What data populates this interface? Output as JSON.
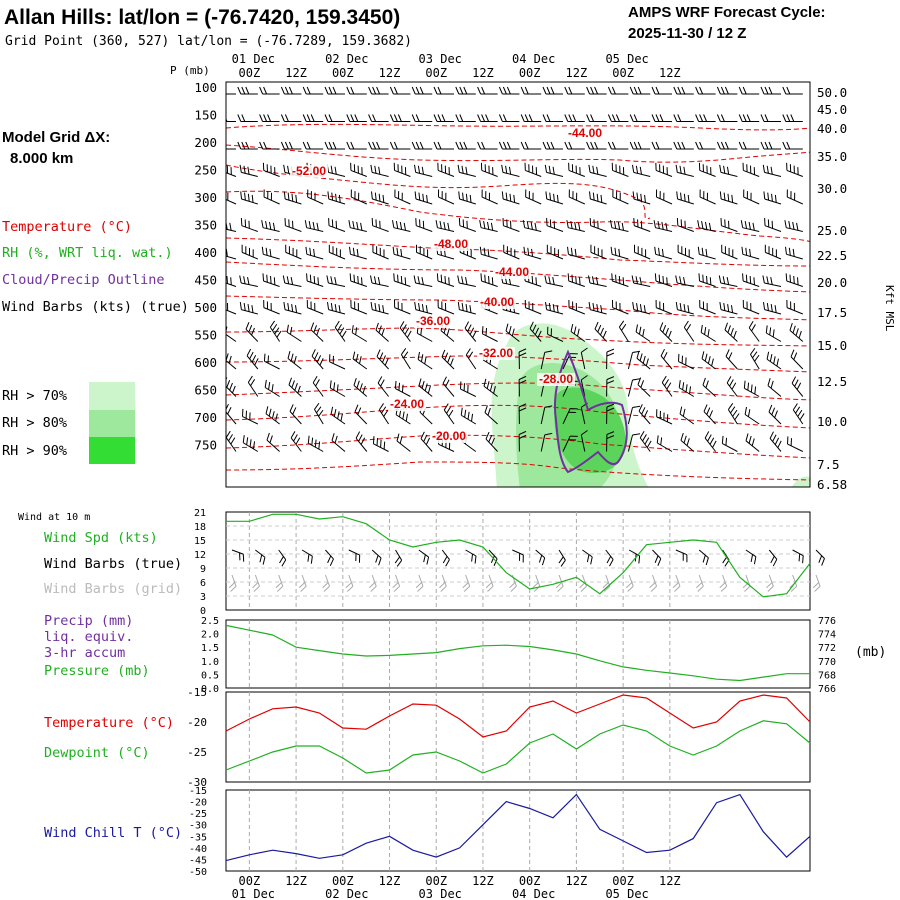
{
  "header": {
    "title": "Allan Hills:  lat/lon = (-76.7420, 159.3450)",
    "subtitle": "Grid Point (360, 527) lat/lon = (-76.7289, 159.3682)",
    "cycle_line1": "AMPS WRF Forecast Cycle:",
    "cycle_line2": "2025-11-30 / 12  Z"
  },
  "left_panel": {
    "grid_label": "Model Grid ΔX:",
    "grid_value": "8.000 km",
    "legend_temperature": "Temperature (°C)",
    "legend_rh": "RH (%, WRT liq. wat.)",
    "legend_cloud": "Cloud/Precip Outline",
    "legend_wind": "Wind Barbs (kts) (true)",
    "rh_levels": [
      "RH > 70%",
      "RH > 80%",
      "RH > 90%"
    ],
    "wind10m": "Wind at 10 m",
    "leg_wspd": "Wind Spd (kts)",
    "leg_wbarb_true": "Wind Barbs (true)",
    "leg_wbarb_grid": "Wind Barbs (grid)",
    "leg_precip1": "Precip (mm)",
    "leg_precip2": "liq. equiv.",
    "leg_precip3": "3-hr accum",
    "leg_pressure": "Pressure (mb)",
    "leg_temp": "Temperature (°C)",
    "leg_dew": "Dewpoint (°C)",
    "leg_chill": "Wind Chill T (°C)"
  },
  "colors": {
    "temperature": "#e00000",
    "rh": "#20b020",
    "cloud": "#7030a0",
    "windchill": "#1a1aa0",
    "rh70": "#ccf5cc",
    "rh80": "#9ee89e",
    "rh90": "#33dd33"
  },
  "time_axis": {
    "top_ticks": [
      "00Z",
      "12Z",
      "00Z",
      "12Z",
      "00Z",
      "12Z",
      "00Z",
      "12Z",
      "00Z",
      "12Z"
    ],
    "day_labels": [
      "01 Dec",
      "02 Dec",
      "03 Dec",
      "04 Dec",
      "05 Dec"
    ],
    "bottom_ticks": [
      "00Z",
      "12Z",
      "00Z",
      "12Z",
      "00Z",
      "12Z",
      "00Z",
      "12Z",
      "00Z",
      "12Z"
    ],
    "bottom_days": [
      "01 Dec",
      "02 Dec",
      "03 Dec",
      "04 Dec",
      "05 Dec"
    ]
  },
  "chart_data": [
    {
      "type": "time-height cross section",
      "y_axis_title": "P (mb)",
      "pressure_ticks": [
        "100",
        "150",
        "200",
        "250",
        "300",
        "350",
        "400",
        "450",
        "500",
        "550",
        "600",
        "650",
        "700",
        "750"
      ],
      "right_axis_title": "Kft MSL",
      "kft_ticks": [
        "50.0",
        "45.0",
        "40.0",
        "35.0",
        "30.0",
        "25.0",
        "22.5",
        "20.0",
        "17.5",
        "15.0",
        "12.5",
        "10.0",
        "7.5",
        "6.58"
      ],
      "temperature_labels": [
        "-44.00",
        "-52.00",
        "-48.00",
        "-44.00",
        "-40.00",
        "-36.00",
        "-32.00",
        "-28.00",
        "-24.00",
        "-20.00"
      ],
      "temperature_contours_c": [
        -52,
        -48,
        -44,
        -40,
        -36,
        -32,
        -28,
        -24,
        -20
      ]
    },
    {
      "type": "line",
      "name": "wind speed at 10 m",
      "ylim": [
        0,
        21
      ],
      "yticks": [
        "21",
        "18",
        "15",
        "12",
        "9",
        "6",
        "3",
        "0"
      ],
      "x_hours": [
        0,
        6,
        12,
        18,
        24,
        30,
        36,
        42,
        48,
        54,
        60,
        66,
        72,
        78,
        84,
        90,
        96,
        102,
        108,
        114,
        120,
        126,
        132,
        138,
        144,
        150
      ],
      "wind_speed_kts": [
        19,
        19,
        20.5,
        20.5,
        19.5,
        20,
        18.5,
        15,
        13.5,
        14.5,
        15,
        13.5,
        8,
        4.5,
        5.5,
        7,
        3.5,
        8,
        14,
        14.5,
        15,
        14.5,
        7,
        2.8,
        3.5,
        10
      ]
    },
    {
      "type": "line",
      "name": "sea-level pressure and 3-hr precipitation",
      "precip_ticks": [
        "2.5",
        "2.0",
        "1.5",
        "1.0",
        "0.5",
        "0.0"
      ],
      "pressure_ticks_right": [
        "776",
        "774",
        "772",
        "770",
        "768",
        "766"
      ],
      "right_unit": "(mb)",
      "precip_mm": [
        0,
        0,
        0,
        0,
        0,
        0,
        0,
        0,
        0,
        0,
        0,
        0,
        0,
        0,
        0,
        0,
        0,
        0,
        0,
        0,
        0,
        0,
        0,
        0,
        0,
        0
      ],
      "pressure_mb": [
        775.2,
        774.5,
        773.8,
        772.0,
        771.5,
        771.0,
        770.7,
        770.8,
        771.0,
        771.2,
        771.8,
        772.2,
        772.3,
        772.1,
        771.6,
        771.0,
        770.0,
        769.1,
        768.6,
        768.2,
        767.8,
        767.3,
        767.1,
        767.6,
        768.1,
        768.1
      ]
    },
    {
      "type": "line",
      "name": "temperature and dewpoint",
      "ylim": [
        -30,
        -15
      ],
      "yticks": [
        "-15",
        "-20",
        "-25",
        "-30"
      ],
      "temperature_c": [
        -21.5,
        -19.5,
        -17.8,
        -17.5,
        -18.5,
        -21.0,
        -21.2,
        -19.0,
        -17.0,
        -17.2,
        -19.5,
        -22.5,
        -21.5,
        -17.5,
        -16.5,
        -18.5,
        -17.0,
        -15.5,
        -16.0,
        -18.5,
        -21.0,
        -20.0,
        -16.5,
        -15.5,
        -16.0,
        -20.0
      ],
      "dewpoint_c": [
        -28.0,
        -26.5,
        -25.0,
        -24.0,
        -24.0,
        -26.0,
        -28.5,
        -28.0,
        -25.5,
        -25.0,
        -26.5,
        -28.5,
        -27.0,
        -23.5,
        -22.0,
        -24.5,
        -22.0,
        -20.5,
        -21.5,
        -24.0,
        -25.5,
        -24.0,
        -21.5,
        -19.8,
        -20.3,
        -23.5
      ]
    },
    {
      "type": "line",
      "name": "wind chill temperature",
      "ylim": [
        -50,
        -15
      ],
      "yticks": [
        "-15",
        "-20",
        "-25",
        "-30",
        "-35",
        "-40",
        "-45",
        "-50"
      ],
      "windchill_c": [
        -45.5,
        -43.0,
        -41.0,
        -42.5,
        -44.5,
        -43.0,
        -38.0,
        -35.0,
        -41.0,
        -44.0,
        -40.0,
        -30.0,
        -20.0,
        -23.0,
        -27.0,
        -17.0,
        -32.0,
        -37.0,
        -42.0,
        -41.0,
        -36.0,
        -20.5,
        -17.0,
        -33.0,
        -44.0,
        -35.0
      ]
    }
  ]
}
